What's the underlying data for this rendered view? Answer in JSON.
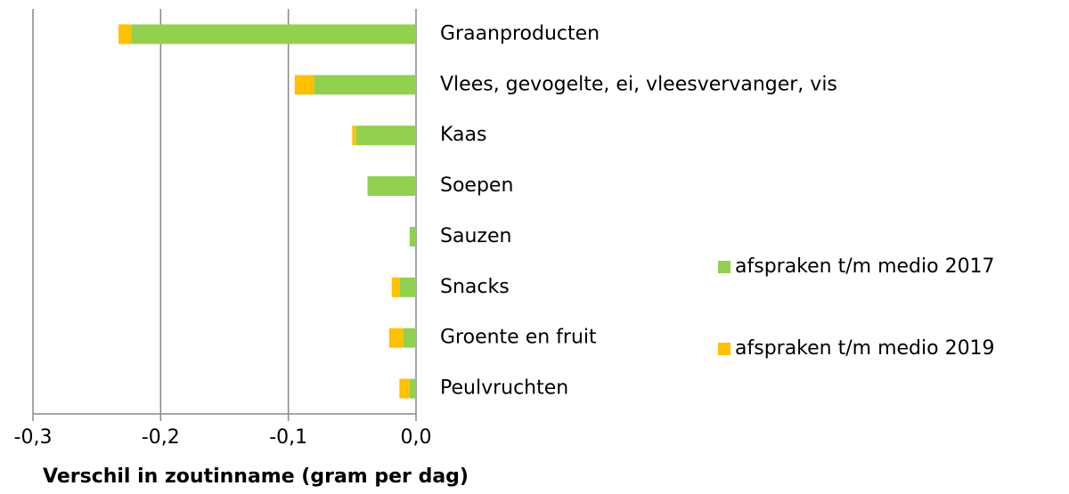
{
  "chart_data": {
    "type": "stacked-barh",
    "categories": [
      "Graanproducten",
      "Vlees, gevogelte, ei, vleesvervanger, vis",
      "Kaas",
      "Soepen",
      "Sauzen",
      "Snacks",
      "Groente en fruit",
      "Peulvruchten"
    ],
    "series": [
      {
        "name": "afspraken t/m medio 2017",
        "color": "#92d050",
        "values": [
          -0.223,
          -0.08,
          -0.047,
          -0.038,
          -0.005,
          -0.013,
          -0.01,
          -0.005
        ]
      },
      {
        "name": "afspraken t/m medio 2019",
        "color": "#ffc000",
        "values": [
          -0.01,
          -0.015,
          -0.003,
          0,
          0,
          -0.006,
          -0.011,
          -0.008
        ]
      }
    ],
    "xlim": [
      -0.3,
      0.0
    ],
    "xticks": [
      {
        "value": -0.3,
        "label": "-0,3"
      },
      {
        "value": -0.2,
        "label": "-0,2"
      },
      {
        "value": -0.1,
        "label": "-0,1"
      },
      {
        "value": 0.0,
        "label": "0,0"
      }
    ],
    "xlabel": "Verschil in zoutinname (gram per dag)",
    "grid": true,
    "legend": "right"
  }
}
